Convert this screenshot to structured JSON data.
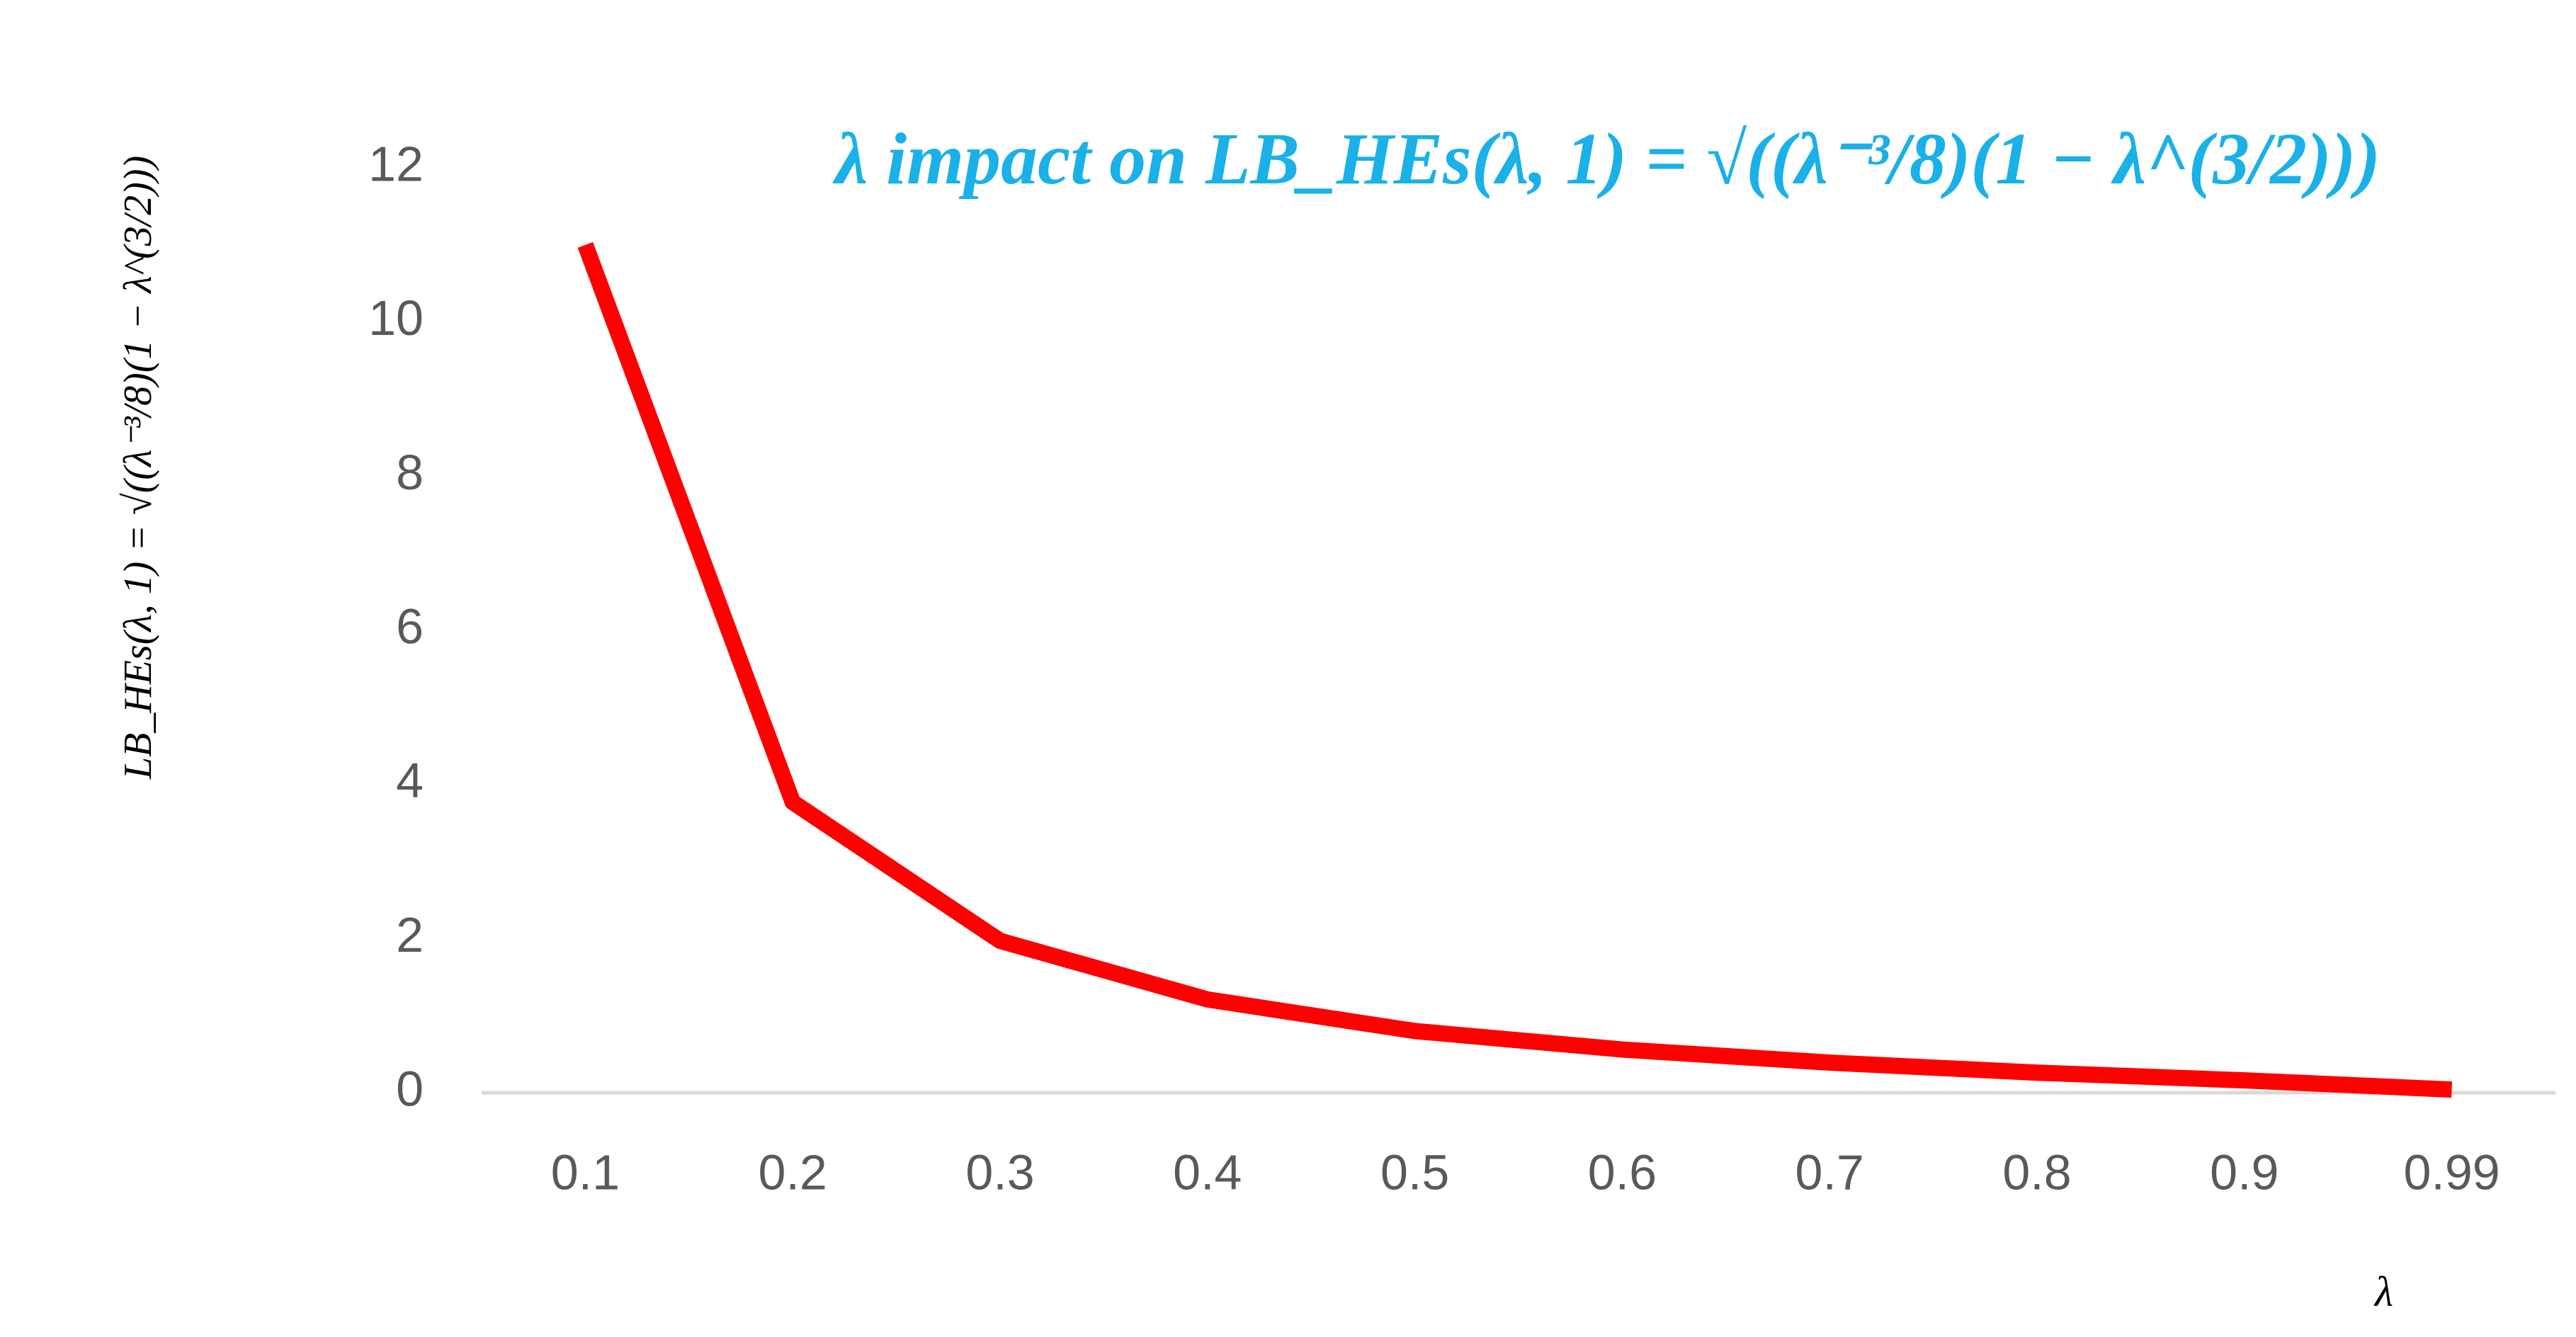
{
  "chart_data": {
    "type": "line",
    "title": "λ impact on LB_HEs(λ, 1) = √((λ⁻³/8)(1 − λ^(3/2)))",
    "y_label": "LB_HEs(λ, 1) = √((λ⁻³/8)(1 − λ^(3/2)))",
    "x_label": "λ",
    "categories": [
      "0.1",
      "0.2",
      "0.3",
      "0.4",
      "0.5",
      "0.6",
      "0.7",
      "0.8",
      "0.9",
      "0.99"
    ],
    "series": [
      {
        "name": "LB_HEs(λ, 1)",
        "color": "#ff0000",
        "values": [
          11.0,
          3.77,
          1.97,
          1.21,
          0.8,
          0.56,
          0.39,
          0.26,
          0.16,
          0.04
        ]
      }
    ],
    "ylim": [
      0,
      12
    ],
    "yticks": [
      0,
      2,
      4,
      6,
      8,
      10,
      12
    ],
    "grid": false,
    "legend": false
  }
}
